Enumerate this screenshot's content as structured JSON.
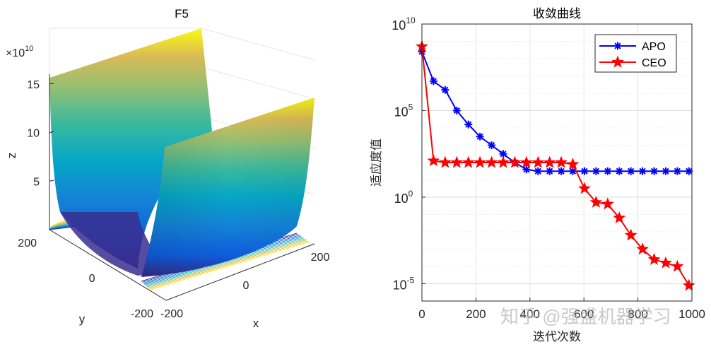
{
  "chart_data": [
    {
      "type": "surface3d",
      "title": "F5",
      "xlabel": "x",
      "ylabel": "y",
      "zlabel": "z",
      "z_exponent_label": "×10",
      "z_exponent_power": "10",
      "x_ticks": [
        "-200",
        "0",
        "200"
      ],
      "y_ticks": [
        "200",
        "0",
        "-200"
      ],
      "z_ticks": [
        "5",
        "10",
        "15"
      ],
      "x_range": [
        -200,
        200
      ],
      "y_range": [
        -200,
        200
      ],
      "z_range": [
        0,
        16
      ],
      "colormap": "parula",
      "contour_levels": 10
    },
    {
      "type": "line",
      "title": "收敛曲线",
      "xlabel": "迭代次数",
      "ylabel": "适应度值",
      "yscale": "log",
      "xlim": [
        0,
        1000
      ],
      "ylim_exponents": [
        -6,
        10
      ],
      "x_ticks": [
        "0",
        "200",
        "400",
        "600",
        "800",
        "1000"
      ],
      "y_ticks": [
        {
          "base": "10",
          "exp": "10",
          "value_exp": 10
        },
        {
          "base": "10",
          "exp": "5",
          "value_exp": 5
        },
        {
          "base": "10",
          "exp": "0",
          "value_exp": 0
        },
        {
          "base": "10",
          "exp": "-5",
          "value_exp": -5
        }
      ],
      "legend_position": "top-right",
      "series": [
        {
          "name": "APO",
          "color": "#0000ff",
          "marker": "asterisk",
          "x": [
            0,
            43,
            86,
            129,
            172,
            215,
            258,
            301,
            344,
            387,
            430,
            473,
            516,
            559,
            602,
            645,
            688,
            731,
            774,
            817,
            860,
            903,
            946,
            989
          ],
          "log10_y": [
            8.4,
            6.7,
            6.2,
            5.0,
            4.2,
            3.5,
            3.0,
            2.5,
            2.0,
            1.6,
            1.5,
            1.5,
            1.5,
            1.5,
            1.5,
            1.5,
            1.5,
            1.5,
            1.5,
            1.5,
            1.5,
            1.5,
            1.5,
            1.5
          ]
        },
        {
          "name": "CEO",
          "color": "#ff0000",
          "marker": "pentagram",
          "x": [
            0,
            43,
            86,
            129,
            172,
            215,
            258,
            301,
            344,
            387,
            430,
            473,
            516,
            559,
            602,
            645,
            688,
            731,
            774,
            817,
            860,
            903,
            946,
            989
          ],
          "log10_y": [
            8.7,
            2.1,
            2.0,
            2.0,
            2.0,
            2.0,
            2.0,
            2.0,
            2.0,
            2.0,
            2.0,
            2.0,
            2.0,
            1.9,
            0.5,
            -0.3,
            -0.4,
            -1.2,
            -2.2,
            -3.0,
            -3.6,
            -3.8,
            -4.0,
            -5.1
          ]
        }
      ]
    }
  ],
  "watermark": "知乎 @强盛机器学习"
}
